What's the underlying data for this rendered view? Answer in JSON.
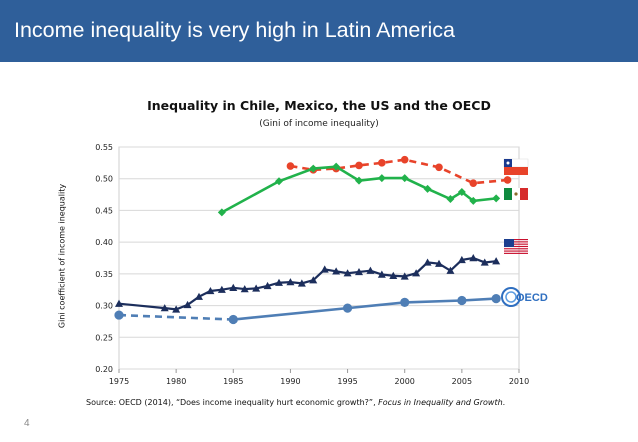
{
  "slide": {
    "banner_title": "Income inequality is very high in Latin America",
    "page_number": "4",
    "source_text_plain": "Source: OECD (2014), “Does income inequality hurt economic growth?”, ",
    "source_text_italic": "Focus in Inequality and Growth",
    "source_text_end": ".",
    "colors": {
      "banner": "#2f5f9a",
      "chile": "#e8432a",
      "mexico": "#21b24b",
      "us": "#1c2e5c",
      "oecd": "#4f7eb5"
    },
    "icons": [
      "chile-flag-icon",
      "mexico-flag-icon",
      "us-flag-icon",
      "oecd-logo-icon"
    ],
    "oecd_logo_text": "OECD"
  },
  "chart_data": {
    "type": "line",
    "title": "Inequality in Chile, Mexico, the US and the OECD",
    "subtitle": "(Gini of income inequality)",
    "ylabel": "Gini coefficient of income inequality",
    "xlabel": "",
    "xlim": [
      1975,
      2010
    ],
    "ylim": [
      0.2,
      0.55
    ],
    "xticks": [
      "1975",
      "1980",
      "1985",
      "1990",
      "1995",
      "2000",
      "2005",
      "2010"
    ],
    "yticks": [
      "0.20",
      "0.25",
      "0.30",
      "0.35",
      "0.40",
      "0.45",
      "0.50",
      "0.55"
    ],
    "grid": "horizontal",
    "series": [
      {
        "key": "chile",
        "color": "#e8432a",
        "style": "dashed",
        "marker": "circle",
        "points": [
          [
            1990,
            0.52
          ],
          [
            1992,
            0.514
          ],
          [
            1994,
            0.516
          ],
          [
            1996,
            0.521
          ],
          [
            1998,
            0.525
          ],
          [
            2000,
            0.53
          ],
          [
            2003,
            0.518
          ],
          [
            2006,
            0.493
          ],
          [
            2009,
            0.498
          ]
        ]
      },
      {
        "key": "mexico",
        "color": "#21b24b",
        "style": "solid",
        "marker": "diamond",
        "points": [
          [
            1984,
            0.447
          ],
          [
            1989,
            0.496
          ],
          [
            1992,
            0.516
          ],
          [
            1994,
            0.519
          ],
          [
            1996,
            0.497
          ],
          [
            1998,
            0.501
          ],
          [
            2000,
            0.501
          ],
          [
            2002,
            0.484
          ],
          [
            2004,
            0.468
          ],
          [
            2005,
            0.479
          ],
          [
            2006,
            0.465
          ],
          [
            2008,
            0.469
          ]
        ]
      },
      {
        "key": "us",
        "color": "#1c2e5c",
        "style": "solid",
        "marker": "triangle",
        "points": [
          [
            1975,
            0.303
          ],
          [
            1979,
            0.296
          ],
          [
            1980,
            0.294
          ],
          [
            1981,
            0.301
          ],
          [
            1982,
            0.314
          ],
          [
            1983,
            0.323
          ],
          [
            1984,
            0.325
          ],
          [
            1985,
            0.328
          ],
          [
            1986,
            0.326
          ],
          [
            1987,
            0.327
          ],
          [
            1988,
            0.331
          ],
          [
            1989,
            0.336
          ],
          [
            1990,
            0.337
          ],
          [
            1991,
            0.335
          ],
          [
            1992,
            0.34
          ],
          [
            1993,
            0.357
          ],
          [
            1994,
            0.354
          ],
          [
            1995,
            0.351
          ],
          [
            1996,
            0.353
          ],
          [
            1997,
            0.355
          ],
          [
            1998,
            0.349
          ],
          [
            1999,
            0.347
          ],
          [
            2000,
            0.346
          ],
          [
            2001,
            0.351
          ],
          [
            2002,
            0.368
          ],
          [
            2003,
            0.366
          ],
          [
            2004,
            0.355
          ],
          [
            2005,
            0.372
          ],
          [
            2006,
            0.375
          ],
          [
            2007,
            0.368
          ],
          [
            2008,
            0.37
          ]
        ]
      },
      {
        "key": "oecd",
        "color": "#4f7eb5",
        "style": "dashed-then-solid",
        "marker": "circle",
        "points": [
          [
            1975,
            0.285
          ],
          [
            1985,
            0.278
          ],
          [
            1995,
            0.296
          ],
          [
            2000,
            0.305
          ],
          [
            2005,
            0.308
          ],
          [
            2008,
            0.311
          ]
        ]
      }
    ]
  }
}
